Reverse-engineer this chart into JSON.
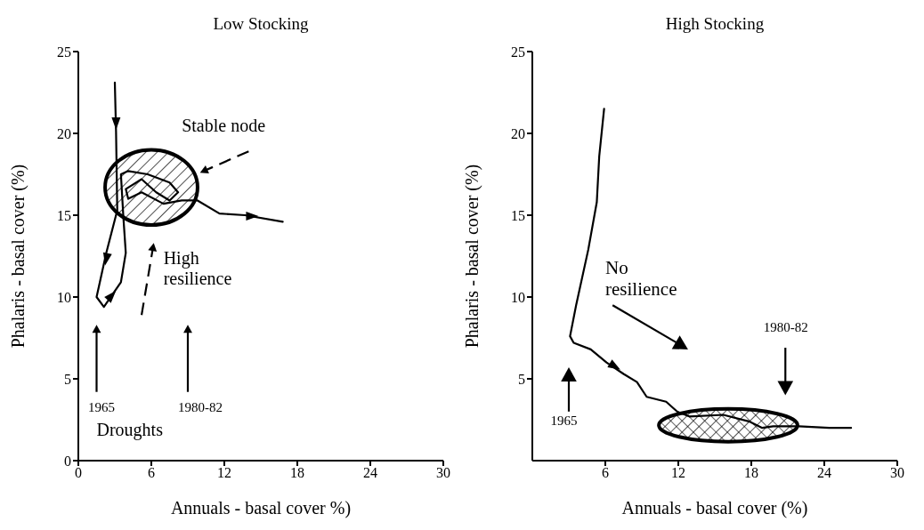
{
  "chart_data": [
    {
      "type": "line",
      "title": "Low Stocking",
      "xlabel": "Annuals - basal cover  %)",
      "ylabel": "Phalaris - basal cover (%)",
      "x": [
        3.0,
        3.1,
        3.2,
        2.3,
        1.5,
        2.1,
        3.5,
        3.9,
        3.7,
        3.5,
        4.1,
        5.7,
        7.5,
        8.2,
        7.5,
        6.4,
        5.2,
        3.9,
        4.1,
        5.2,
        7.0,
        8.5,
        9.8,
        11.6,
        13.7,
        16.8
      ],
      "series": [
        {
          "color": "#000000",
          "values": [
            23.1,
            20.1,
            15.3,
            12.7,
            10.0,
            9.4,
            10.9,
            12.7,
            14.9,
            17.5,
            17.7,
            17.5,
            17.0,
            16.4,
            15.9,
            16.4,
            17.2,
            16.6,
            16.0,
            16.4,
            15.7,
            15.9,
            15.9,
            15.1,
            15.0,
            14.6
          ]
        }
      ],
      "annotations": [
        "Stable node",
        "High resilience",
        "1965",
        "1980-82",
        "Droughts"
      ],
      "xlim": [
        0,
        30
      ],
      "xticks": [
        0,
        6,
        12,
        18,
        24,
        30
      ],
      "ylim": [
        0,
        25
      ],
      "yticks": [
        0,
        5,
        10,
        15,
        20,
        25
      ]
    },
    {
      "type": "line",
      "title": "High Stocking",
      "xlabel": "Annuals - basal cover (%)",
      "ylabel": "Phalaris - basal cover (%)",
      "x": [
        5.9,
        5.5,
        5.3,
        4.6,
        3.6,
        3.1,
        3.4,
        4.8,
        6.1,
        7.5,
        8.6,
        9.4,
        11.0,
        11.9,
        12.9,
        15.7,
        17.8,
        18.9,
        19.8,
        21.9,
        24.4,
        26.2
      ],
      "series": [
        {
          "color": "#000000",
          "values": [
            21.5,
            18.6,
            15.8,
            12.9,
            9.5,
            7.6,
            7.2,
            6.8,
            6.0,
            5.3,
            4.8,
            3.9,
            3.6,
            3.0,
            2.7,
            2.8,
            2.4,
            2.0,
            2.1,
            2.1,
            2.0,
            2.0
          ]
        }
      ],
      "annotations": [
        "No resilience",
        "1965",
        "1980-82"
      ],
      "xlim": [
        0,
        30
      ],
      "xticks": [
        6,
        12,
        18,
        24,
        30
      ],
      "ylim": [
        0,
        25
      ],
      "yticks": [
        5,
        10,
        15,
        20,
        25
      ]
    }
  ]
}
